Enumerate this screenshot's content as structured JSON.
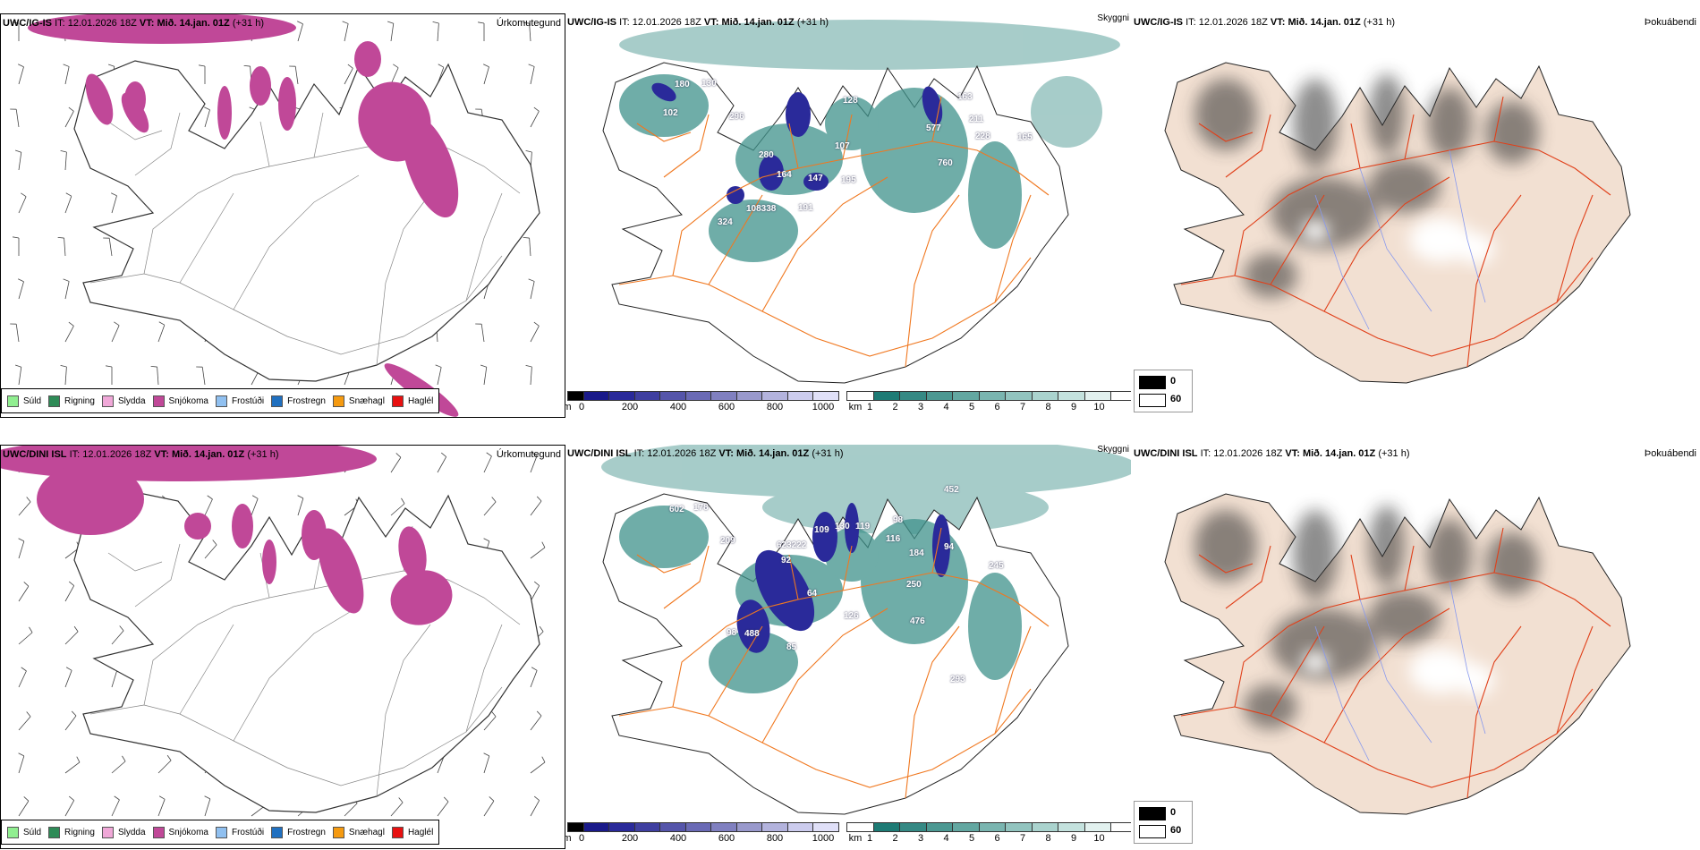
{
  "rows": [
    {
      "model": "UWC/IG-IS",
      "it_label": "IT:",
      "it_value": "12.01.2026 18Z",
      "vt_label": "VT:",
      "vt_value": "Mið. 14.jan. 01Z",
      "lead": "(+31 h)",
      "map_labels": [
        "180",
        "130",
        "102",
        "296",
        "128",
        "107",
        "280",
        "164",
        "147",
        "191",
        "108338",
        "195",
        "163",
        "211",
        "228",
        "577",
        "760",
        "165",
        "324"
      ]
    },
    {
      "model": "UWC/DINI ISL",
      "it_label": "IT:",
      "it_value": "12.01.2026 18Z",
      "vt_label": "VT:",
      "vt_value": "Mið. 14.jan. 01Z",
      "lead": "(+31 h)",
      "map_labels": [
        "602",
        "178",
        "209",
        "623222",
        "92",
        "109",
        "130",
        "119",
        "98",
        "116",
        "184",
        "452",
        "94",
        "64",
        "126",
        "85",
        "98",
        "488",
        "250",
        "476",
        "293",
        "245"
      ]
    }
  ],
  "fields": {
    "precip_type": "Úrkomutegund",
    "visibility": "Skyggni",
    "fog": "Þokuábendi"
  },
  "precip_legend": [
    {
      "label": "Súld",
      "color": "#90ee90"
    },
    {
      "label": "Rigning",
      "color": "#2e8b57"
    },
    {
      "label": "Slydda",
      "color": "#f0a8d8"
    },
    {
      "label": "Snjókoma",
      "color": "#c04898"
    },
    {
      "label": "Frostúði",
      "color": "#90c0f0"
    },
    {
      "label": "Frostregn",
      "color": "#2070c0"
    },
    {
      "label": "Snæhagl",
      "color": "#f59a10"
    },
    {
      "label": "Haglél",
      "color": "#e81010"
    }
  ],
  "ceiling_bar": {
    "unit": "m",
    "ticks": [
      "0",
      "200",
      "400",
      "600",
      "800",
      "1000"
    ],
    "colors": [
      "#000000",
      "#1a1a8a",
      "#2a2a9a",
      "#3f3fa0",
      "#5555aa",
      "#6a6ab5",
      "#8080c0",
      "#9999cc",
      "#b3b3dd",
      "#ccccee",
      "#e0e0f8"
    ]
  },
  "vis_bar": {
    "unit": "km",
    "ticks": [
      "1",
      "2",
      "3",
      "4",
      "5",
      "6",
      "7",
      "8",
      "9",
      "10"
    ],
    "colors": [
      "#ffffff",
      "#1e7b75",
      "#358984",
      "#4c9892",
      "#63a7a1",
      "#7ab5b0",
      "#92c4bf",
      "#aad3ce",
      "#c4e2de",
      "#e2f1ef",
      "#ffffff"
    ]
  },
  "fog_legend": [
    {
      "label": "0",
      "color": "#000000"
    },
    {
      "label": "60",
      "color": "#ffffff"
    }
  ]
}
